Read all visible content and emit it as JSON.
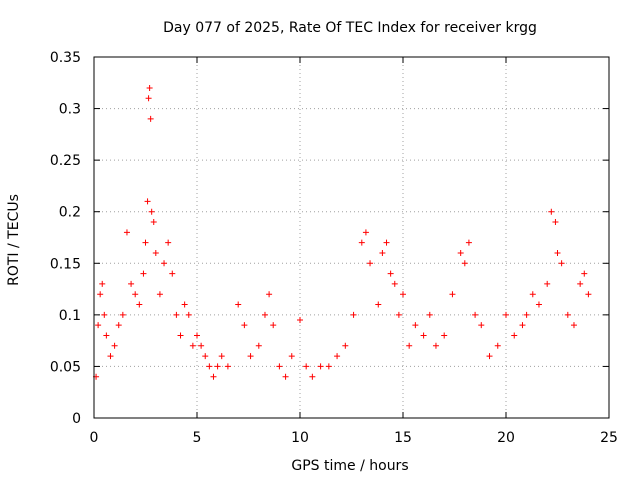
{
  "chart_data": {
    "type": "scatter",
    "title": "Day 077 of 2025, Rate Of TEC Index for receiver krgg",
    "xlabel": "GPS time / hours",
    "ylabel": "ROTI / TECUs",
    "xlim": [
      0,
      25
    ],
    "ylim": [
      0,
      0.35
    ],
    "x_ticks": [
      0,
      5,
      10,
      15,
      20,
      25
    ],
    "x_tick_labels": [
      "0",
      "5",
      "10",
      "15",
      "20",
      "25"
    ],
    "y_ticks": [
      0,
      0.05,
      0.1,
      0.15,
      0.2,
      0.25,
      0.3,
      0.35
    ],
    "y_tick_labels": [
      "0",
      "0.05",
      "0.1",
      "0.15",
      "0.2",
      "0.25",
      "0.3",
      "0.35"
    ],
    "grid": true,
    "marker": "+",
    "marker_color": "#ff0000",
    "series": [
      {
        "name": "ROTI",
        "x": [
          0.1,
          0.2,
          0.3,
          0.4,
          0.5,
          0.6,
          0.8,
          1.0,
          1.2,
          1.4,
          1.6,
          1.8,
          2.0,
          2.2,
          2.4,
          2.5,
          2.6,
          2.65,
          2.7,
          2.75,
          2.8,
          2.9,
          3.0,
          3.2,
          3.4,
          3.6,
          3.8,
          4.0,
          4.2,
          4.4,
          4.6,
          4.8,
          5.0,
          5.2,
          5.4,
          5.6,
          5.8,
          6.0,
          6.2,
          6.5,
          7.0,
          7.3,
          7.6,
          8.0,
          8.3,
          8.5,
          8.7,
          9.0,
          9.3,
          9.6,
          10.0,
          10.3,
          10.6,
          11.0,
          11.4,
          11.8,
          12.2,
          12.6,
          13.0,
          13.2,
          13.4,
          13.8,
          14.0,
          14.2,
          14.4,
          14.6,
          14.8,
          15.0,
          15.3,
          15.6,
          16.0,
          16.3,
          16.6,
          17.0,
          17.4,
          17.8,
          18.0,
          18.2,
          18.5,
          18.8,
          19.2,
          19.6,
          20.0,
          20.4,
          20.8,
          21.0,
          21.3,
          21.6,
          22.0,
          22.2,
          22.4,
          22.5,
          22.7,
          23.0,
          23.3,
          23.6,
          23.8,
          24.0
        ],
        "y": [
          0.04,
          0.09,
          0.12,
          0.13,
          0.1,
          0.08,
          0.06,
          0.07,
          0.09,
          0.1,
          0.18,
          0.13,
          0.12,
          0.11,
          0.14,
          0.17,
          0.21,
          0.31,
          0.32,
          0.29,
          0.2,
          0.19,
          0.16,
          0.12,
          0.15,
          0.17,
          0.14,
          0.1,
          0.08,
          0.11,
          0.1,
          0.07,
          0.08,
          0.07,
          0.06,
          0.05,
          0.04,
          0.05,
          0.06,
          0.05,
          0.11,
          0.09,
          0.06,
          0.07,
          0.1,
          0.12,
          0.09,
          0.05,
          0.04,
          0.06,
          0.095,
          0.05,
          0.04,
          0.05,
          0.05,
          0.06,
          0.07,
          0.1,
          0.17,
          0.18,
          0.15,
          0.11,
          0.16,
          0.17,
          0.14,
          0.13,
          0.1,
          0.12,
          0.07,
          0.09,
          0.08,
          0.1,
          0.07,
          0.08,
          0.12,
          0.16,
          0.15,
          0.17,
          0.1,
          0.09,
          0.06,
          0.07,
          0.1,
          0.08,
          0.09,
          0.1,
          0.12,
          0.11,
          0.13,
          0.2,
          0.19,
          0.16,
          0.15,
          0.1,
          0.09,
          0.13,
          0.14,
          0.12
        ]
      }
    ]
  }
}
